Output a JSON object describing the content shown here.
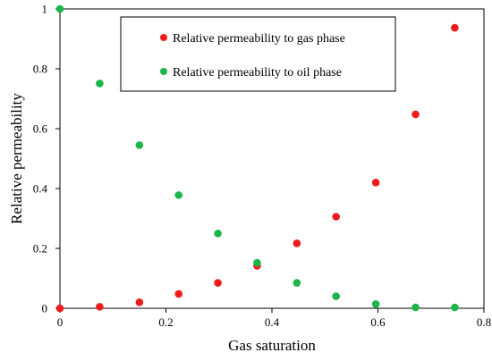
{
  "chart_data": {
    "type": "scatter",
    "xlabel": "Gas saturation",
    "ylabel": "Relative  permeability",
    "xlim": [
      0,
      0.8
    ],
    "ylim": [
      0,
      1
    ],
    "x_ticks": [
      0,
      0.2,
      0.4,
      0.6,
      0.8
    ],
    "x_tick_labels": [
      "0",
      "0.2",
      "0.4",
      "0.6",
      "0.8"
    ],
    "y_ticks": [
      0,
      0.2,
      0.4,
      0.6,
      0.8,
      1
    ],
    "y_tick_labels": [
      "0",
      "0.2",
      "0.4",
      "0.6",
      "0.8",
      "1"
    ],
    "grid": false,
    "legend_position": "top-center",
    "series": [
      {
        "name": "Relative permeability to gas phase",
        "color": "#ee1c1c",
        "x": [
          0,
          0.075,
          0.15,
          0.224,
          0.298,
          0.372,
          0.447,
          0.521,
          0.596,
          0.671,
          0.745
        ],
        "y": [
          0,
          0.005,
          0.02,
          0.048,
          0.085,
          0.142,
          0.217,
          0.306,
          0.42,
          0.648,
          0.937
        ]
      },
      {
        "name": "Relative permeability to oil phase",
        "color": "#1db54a",
        "x": [
          0,
          0.075,
          0.15,
          0.224,
          0.298,
          0.372,
          0.447,
          0.521,
          0.596,
          0.671,
          0.745
        ],
        "y": [
          1,
          0.751,
          0.545,
          0.378,
          0.25,
          0.152,
          0.085,
          0.04,
          0.014,
          0.003,
          0.003
        ]
      }
    ]
  }
}
